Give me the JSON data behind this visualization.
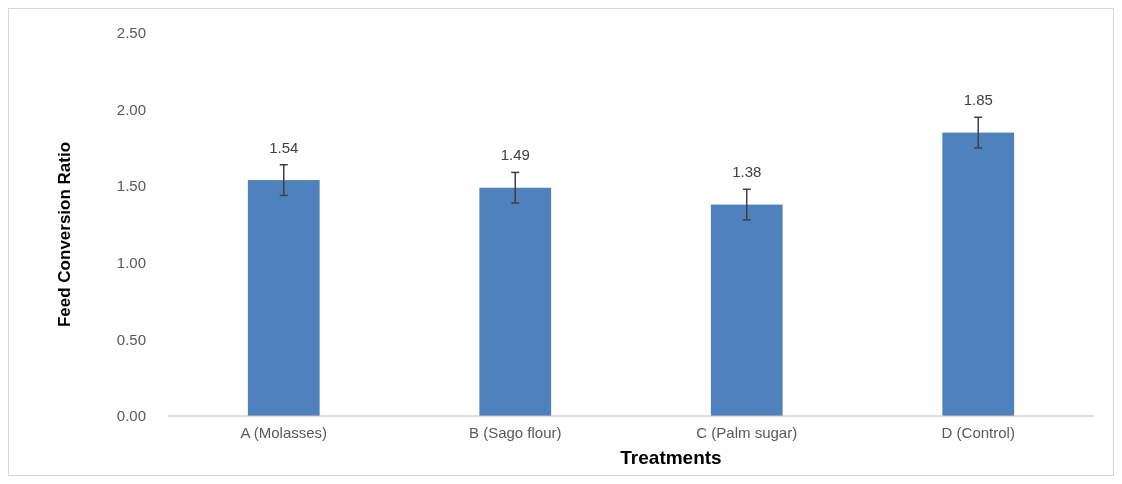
{
  "chart_data": {
    "type": "bar",
    "xlabel": "Treatments",
    "ylabel": "Feed Conversion Ratio",
    "categories": [
      "A (Molasses)",
      "B (Sago flour)",
      "C (Palm sugar)",
      "D (Control)"
    ],
    "values": [
      1.54,
      1.49,
      1.38,
      1.85
    ],
    "errors": [
      0.1,
      0.1,
      0.1,
      0.1
    ],
    "color": "#4f81bd",
    "ylim": [
      0,
      2.5
    ],
    "yticks": [
      {
        "value": 0,
        "label": "0.00"
      },
      {
        "value": 0.5,
        "label": "0.50"
      },
      {
        "value": 1,
        "label": "1.00"
      },
      {
        "value": 1.5,
        "label": "1.50"
      },
      {
        "value": 2,
        "label": "2.00"
      },
      {
        "value": 2.5,
        "label": "2.50"
      }
    ],
    "data_labels": true,
    "grid": false
  }
}
